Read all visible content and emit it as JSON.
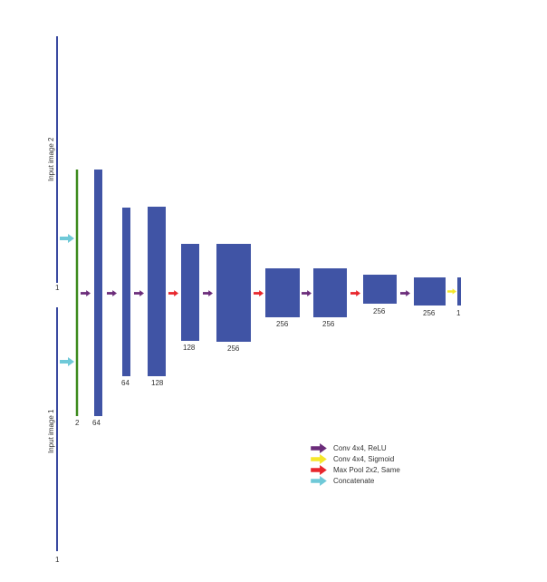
{
  "colors": {
    "block": "#4054a5",
    "input_line": "#3a4aa0",
    "concat_line": "#3c8a1c",
    "relu": "#6b2c7a",
    "sigmoid": "#f5e72a",
    "maxpool": "#e8262c",
    "concat": "#6fc9d8",
    "text": "#333333"
  },
  "inputs": [
    {
      "label": "Input image 2",
      "channels": "1"
    },
    {
      "label": "Input image 1",
      "channels": "1"
    }
  ],
  "concat_layer": {
    "channels": "2"
  },
  "layers": [
    {
      "channels": "64",
      "op_after": "relu"
    },
    {
      "channels": "64",
      "op_after": "relu"
    },
    {
      "channels": "128",
      "op_after": "maxpool"
    },
    {
      "channels": "128",
      "op_after": "relu"
    },
    {
      "channels": "256",
      "op_after": "maxpool"
    },
    {
      "channels": "256",
      "op_after": "relu"
    },
    {
      "channels": "256",
      "op_after": "maxpool"
    },
    {
      "channels": "256",
      "op_after": "relu"
    },
    {
      "channels": "256",
      "op_after": "sigmoid"
    },
    {
      "channels": "1",
      "op_after": null
    }
  ],
  "legend": [
    {
      "op": "relu",
      "label": "Conv 4x4, ReLU"
    },
    {
      "op": "sigmoid",
      "label": "Conv 4x4, Sigmoid"
    },
    {
      "op": "maxpool",
      "label": "Max Pool 2x2, Same"
    },
    {
      "op": "concat",
      "label": "Concatenate"
    }
  ]
}
